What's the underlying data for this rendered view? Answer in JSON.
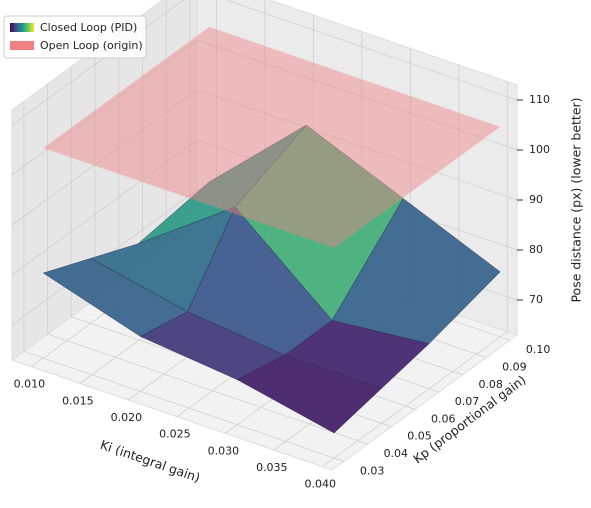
{
  "chart_data": {
    "type": "surface3d",
    "surface_name": "Closed Loop (PID)",
    "colormap": "viridis",
    "x_label": "Ki (integral gain)",
    "y_label": "Kp (proportional gain)",
    "z_label": "Pose distance (px) (lower better)",
    "x": [
      0.01,
      0.02,
      0.03,
      0.04
    ],
    "y": [
      0.03,
      0.05,
      0.07,
      0.1
    ],
    "z": [
      [
        80,
        74,
        72,
        68
      ],
      [
        76,
        72,
        70,
        70
      ],
      [
        72,
        86,
        70,
        72
      ],
      [
        74,
        92,
        84,
        76
      ]
    ],
    "plane": {
      "name": "Open Loop (origin)",
      "value": 105,
      "color": "#f08080"
    },
    "xlim": [
      0.008,
      0.041
    ],
    "ylim": [
      0.025,
      0.103
    ],
    "zlim": [
      63,
      113
    ],
    "xticks": [
      {
        "value": 0.01,
        "label": "0.010"
      },
      {
        "value": 0.015,
        "label": "0.015"
      },
      {
        "value": 0.02,
        "label": "0.020"
      },
      {
        "value": 0.025,
        "label": "0.025"
      },
      {
        "value": 0.03,
        "label": "0.030"
      },
      {
        "value": 0.035,
        "label": "0.035"
      },
      {
        "value": 0.04,
        "label": "0.040"
      }
    ],
    "yticks": [
      0.03,
      0.04,
      0.05,
      0.06,
      0.07,
      0.08,
      0.09,
      {
        "value": 0.1,
        "label": "0.10"
      }
    ],
    "zticks": [
      70,
      80,
      90,
      100,
      110
    ],
    "grid": true,
    "legend": "upper left"
  }
}
